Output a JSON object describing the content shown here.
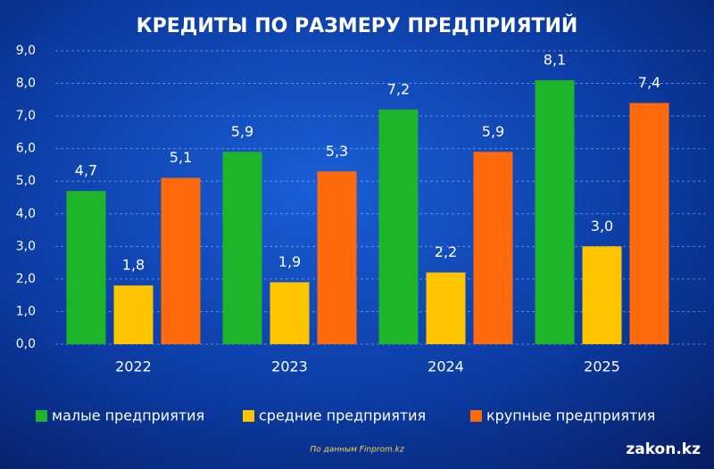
{
  "chart_data": {
    "type": "bar",
    "title": "КРЕДИТЫ ПО РАЗМЕРУ ПРЕДПРИЯТИЙ",
    "categories": [
      "2022",
      "2023",
      "2024",
      "2025"
    ],
    "series": [
      {
        "name": "малые предприятия",
        "color": "#1fb52a",
        "values": [
          4.7,
          5.9,
          7.2,
          8.1
        ],
        "value_labels": [
          "4,7",
          "5,9",
          "7,2",
          "8,1"
        ]
      },
      {
        "name": "средние предприятия",
        "color": "#ffc400",
        "values": [
          1.8,
          1.9,
          2.2,
          3.0
        ],
        "value_labels": [
          "1,8",
          "1,9",
          "2,2",
          "3,0"
        ]
      },
      {
        "name": "крупные предприятия",
        "color": "#ff6a0d",
        "values": [
          5.1,
          5.3,
          5.9,
          7.4
        ],
        "value_labels": [
          "5,1",
          "5,3",
          "5,9",
          "7,4"
        ]
      }
    ],
    "ylim": [
      0,
      9
    ],
    "yticks": [
      {
        "value": 0,
        "label": "0,0"
      },
      {
        "value": 1,
        "label": "1,0"
      },
      {
        "value": 2,
        "label": "2,0"
      },
      {
        "value": 3,
        "label": "3,0"
      },
      {
        "value": 4,
        "label": "4,0"
      },
      {
        "value": 5,
        "label": "5,0"
      },
      {
        "value": 6,
        "label": "6,0"
      },
      {
        "value": 7,
        "label": "7,0"
      },
      {
        "value": 8,
        "label": "8,0"
      },
      {
        "value": 9,
        "label": "9,0"
      }
    ],
    "grid": true,
    "source": "По данным Finprom.kz",
    "watermark": "zakon.kz"
  }
}
